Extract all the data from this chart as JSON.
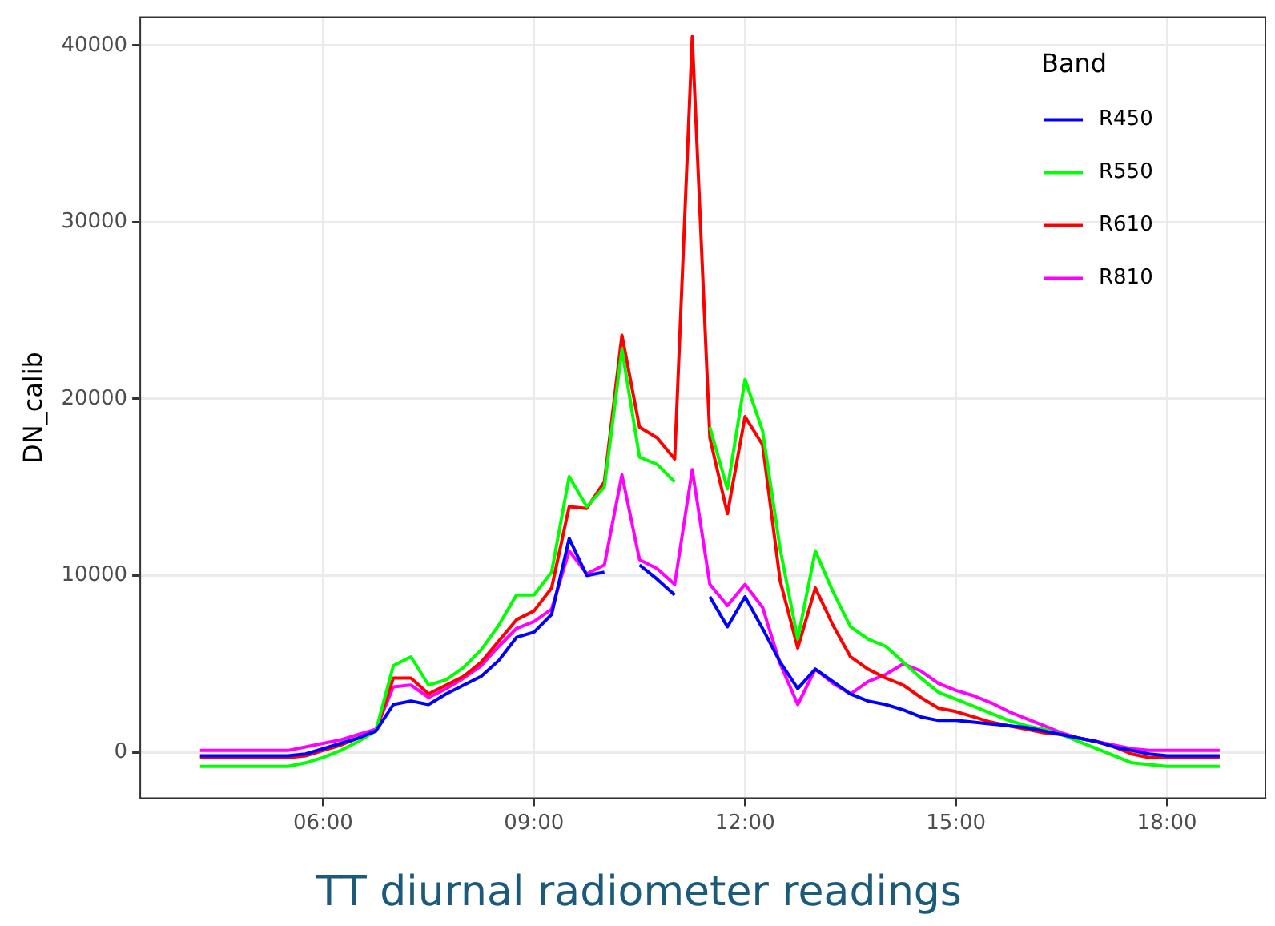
{
  "chart_data": {
    "type": "line",
    "title": "TT diurnal radiometer readings",
    "ylabel": "DN_calib",
    "legend_title": "Band",
    "legend": "top right",
    "grid": true,
    "marker": "none",
    "line_style": "solid",
    "x": [
      4.25,
      4.5,
      4.75,
      5,
      5.25,
      5.5,
      5.75,
      6,
      6.25,
      6.5,
      6.75,
      7,
      7.25,
      7.5,
      7.75,
      8,
      8.25,
      8.5,
      8.75,
      9,
      9.25,
      9.5,
      9.75,
      10,
      10.25,
      10.5,
      10.75,
      11,
      11.25,
      11.5,
      11.75,
      12,
      12.25,
      12.5,
      12.75,
      13,
      13.25,
      13.5,
      13.75,
      14,
      14.25,
      14.5,
      14.75,
      15,
      15.25,
      15.5,
      15.75,
      16,
      16.25,
      16.5,
      16.75,
      17,
      17.25,
      17.5,
      17.75,
      18,
      18.25,
      18.5,
      18.75
    ],
    "xlim": [
      3.4,
      19.4
    ],
    "xticks": [
      {
        "value": 6,
        "label": "06:00"
      },
      {
        "value": 9,
        "label": "09:00"
      },
      {
        "value": 12,
        "label": "12:00"
      },
      {
        "value": 15,
        "label": "15:00"
      },
      {
        "value": 18,
        "label": "18:00"
      }
    ],
    "ylim": [
      -2600,
      41600
    ],
    "yticks": [
      0,
      10000,
      20000,
      30000,
      40000
    ],
    "series": [
      {
        "name": "R450",
        "color": "#0000ff",
        "values": [
          -200,
          -200,
          -200,
          -200,
          -200,
          -200,
          -100,
          200,
          500,
          800,
          1200,
          2700,
          2900,
          2700,
          3300,
          3800,
          4300,
          5200,
          6500,
          6800,
          7800,
          12100,
          10000,
          10200,
          null,
          10600,
          9800,
          8900,
          null,
          8800,
          7100,
          8800,
          7000,
          5100,
          3600,
          4700,
          4000,
          3300,
          2900,
          2700,
          2400,
          2000,
          1800,
          1800,
          1700,
          1600,
          1500,
          1400,
          1200,
          1000,
          800,
          600,
          300,
          100,
          -100,
          -200,
          -200,
          -200,
          -200
        ]
      },
      {
        "name": "R550",
        "color": "#00ff00",
        "values": [
          -800,
          -800,
          -800,
          -800,
          -800,
          -800,
          -600,
          -300,
          100,
          600,
          1200,
          4900,
          5400,
          3800,
          4100,
          4800,
          5800,
          7200,
          8900,
          8900,
          10200,
          15600,
          13900,
          15000,
          22800,
          16700,
          16300,
          15300,
          null,
          18400,
          14900,
          21100,
          18200,
          11500,
          6400,
          11400,
          9100,
          7100,
          6400,
          6000,
          5100,
          4200,
          3400,
          3000,
          2600,
          2200,
          1800,
          1500,
          1300,
          1000,
          600,
          200,
          -200,
          -600,
          -700,
          -800,
          -800,
          -800,
          -800
        ]
      },
      {
        "name": "R610",
        "color": "#ff0000",
        "values": [
          -300,
          -300,
          -300,
          -300,
          -300,
          -300,
          -200,
          100,
          400,
          800,
          1200,
          4200,
          4200,
          3300,
          3800,
          4300,
          5100,
          6300,
          7500,
          8000,
          9300,
          13900,
          13800,
          15300,
          23600,
          18400,
          17800,
          16600,
          40500,
          17800,
          13500,
          19000,
          17400,
          9700,
          5900,
          9300,
          7200,
          5400,
          4700,
          4200,
          3800,
          3100,
          2500,
          2300,
          2000,
          1700,
          1500,
          1300,
          1100,
          1000,
          800,
          600,
          300,
          -100,
          -300,
          -300,
          -300,
          -300,
          -300
        ]
      },
      {
        "name": "R810",
        "color": "#ff00ff",
        "values": [
          100,
          100,
          100,
          100,
          100,
          100,
          300,
          500,
          700,
          1000,
          1300,
          3700,
          3800,
          3100,
          3600,
          4200,
          4900,
          6000,
          7000,
          7400,
          8100,
          11400,
          10100,
          10600,
          15700,
          10900,
          10400,
          9500,
          16000,
          9500,
          8300,
          9500,
          8200,
          5000,
          2700,
          4700,
          3900,
          3300,
          4000,
          4400,
          5000,
          4600,
          3900,
          3500,
          3200,
          2800,
          2300,
          1900,
          1500,
          1100,
          800,
          600,
          400,
          200,
          100,
          100,
          100,
          100,
          100
        ]
      }
    ]
  }
}
